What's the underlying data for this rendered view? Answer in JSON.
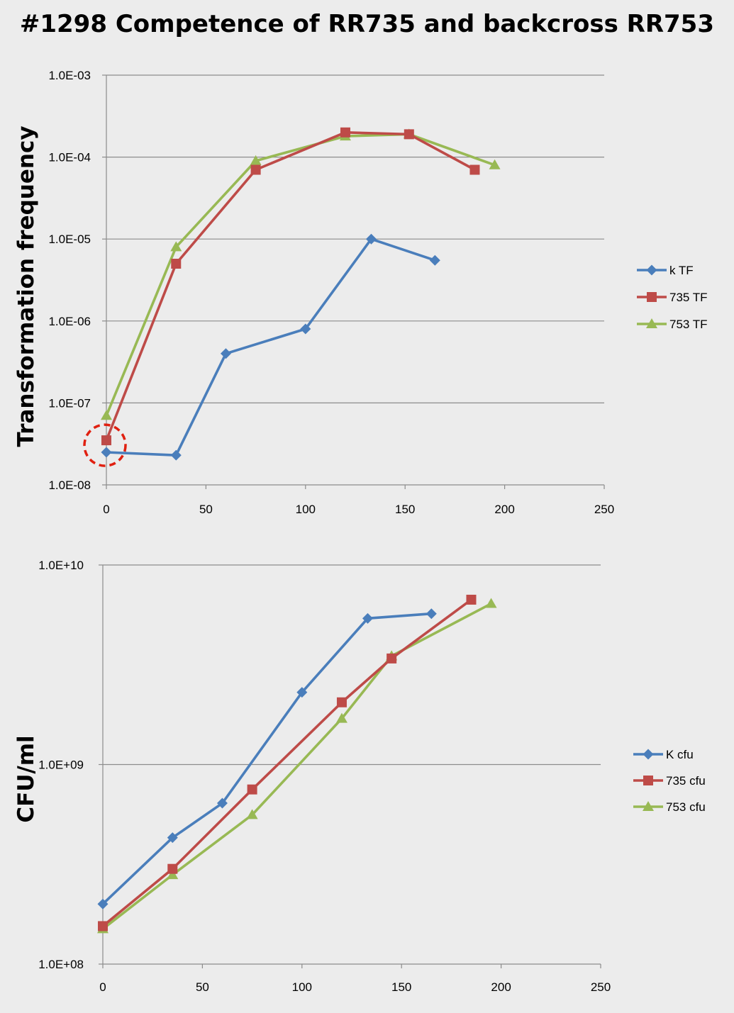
{
  "title": "#1298  Competence of RR735 and backcross RR753",
  "chart_data": [
    {
      "type": "line",
      "log_y": true,
      "ylabel": "Transformation frequency",
      "xlabel": "",
      "xlim": [
        0,
        250
      ],
      "ylim": [
        1e-08,
        0.001
      ],
      "x_ticks": [
        "0",
        "50",
        "100",
        "150",
        "200",
        "250"
      ],
      "y_ticks": [
        "1.0E-08",
        "1.0E-07",
        "1.0E-06",
        "1.0E-05",
        "1.0E-04",
        "1.0E-03"
      ],
      "grid": true,
      "legend_position": "right",
      "annotation": "dashed red circle around the 735 TF point at x = 0",
      "series": [
        {
          "name": "k TF",
          "color": "#4a7ebb",
          "marker": "diamond",
          "x": [
            0,
            35,
            60,
            100,
            133,
            165
          ],
          "y": [
            2.5e-08,
            2.3e-08,
            4e-07,
            8e-07,
            1e-05,
            5.5e-06
          ]
        },
        {
          "name": "735 TF",
          "color": "#be4b48",
          "marker": "square",
          "x": [
            0,
            35,
            75,
            120,
            152,
            185
          ],
          "y": [
            3.5e-08,
            5e-06,
            7e-05,
            0.0002,
            0.00019,
            7e-05
          ]
        },
        {
          "name": "753 TF",
          "color": "#98b954",
          "marker": "triangle",
          "x": [
            0,
            35,
            75,
            120,
            152,
            195
          ],
          "y": [
            7e-08,
            8e-06,
            9e-05,
            0.00018,
            0.00019,
            8e-05
          ]
        }
      ]
    },
    {
      "type": "line",
      "log_y": true,
      "ylabel": "CFU/ml",
      "xlabel": "",
      "xlim": [
        0,
        250
      ],
      "ylim": [
        100000000,
        10000000000
      ],
      "x_ticks": [
        "0",
        "50",
        "100",
        "150",
        "200",
        "250"
      ],
      "y_ticks": [
        "1.0E+08",
        "1.0E+09",
        "1.0E+10"
      ],
      "grid": true,
      "legend_position": "right",
      "series": [
        {
          "name": "K cfu",
          "color": "#4a7ebb",
          "marker": "diamond",
          "x": [
            0,
            35,
            60,
            100,
            133,
            165
          ],
          "y": [
            200000000,
            430000000,
            640000000,
            2300000000,
            5400000000,
            5700000000
          ]
        },
        {
          "name": "735 cfu",
          "color": "#be4b48",
          "marker": "square",
          "x": [
            0,
            35,
            75,
            120,
            145,
            185
          ],
          "y": [
            155000000,
            300000000,
            750000000,
            2050000000,
            3400000000,
            6700000000
          ]
        },
        {
          "name": "753 cfu",
          "color": "#98b954",
          "marker": "triangle",
          "x": [
            0,
            35,
            75,
            120,
            145,
            195
          ],
          "y": [
            150000000,
            280000000,
            560000000,
            1700000000,
            3500000000,
            6400000000
          ]
        }
      ]
    }
  ]
}
